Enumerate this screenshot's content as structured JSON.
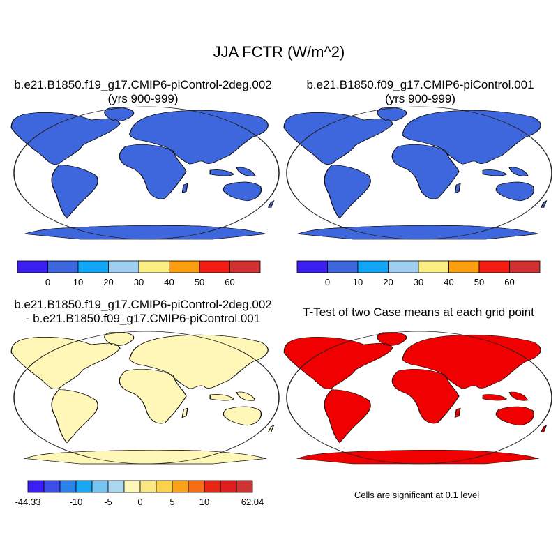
{
  "title": "JJA FCTR (W/m^2)",
  "panels": [
    {
      "title_line1": "b.e21.B1850.f19_g17.CMIP6-piControl-2deg.002",
      "title_line2": "(yrs 900-999)"
    },
    {
      "title_line1": "b.e21.B1850.f09_g17.CMIP6-piControl.001",
      "title_line2": "(yrs 900-999)"
    },
    {
      "title_line1": "b.e21.B1850.f19_g17.CMIP6-piControl-2deg.002",
      "title_line2": "- b.e21.B1850.f09_g17.CMIP6-piControl.001"
    },
    {
      "title_line1": "T-Test of two Case means at each grid point"
    }
  ],
  "colorbars": {
    "cases": {
      "colors": [
        "#3b1ff2",
        "#3e66dd",
        "#11a6f6",
        "#9ecef0",
        "#fbee82",
        "#fb9e10",
        "#f31d13",
        "#d03232"
      ],
      "labels": [
        "0",
        "10",
        "20",
        "30",
        "40",
        "50",
        "60"
      ]
    },
    "diff": {
      "colors": [
        "#3b1ff2",
        "#3e4ee8",
        "#2a82ea",
        "#1aa7f6",
        "#76c4f2",
        "#aad7ef",
        "#fff7b8",
        "#fbe780",
        "#fcd24a",
        "#fba21a",
        "#f76d16",
        "#e82513",
        "#de1d1d",
        "#cf3434"
      ],
      "labels": [
        "-44.33",
        "-10",
        "-5",
        "0",
        "5",
        "10",
        "62.04"
      ]
    }
  },
  "significance_note": "Cells are significant at 0.1 level",
  "significance_color": "#f00000"
}
